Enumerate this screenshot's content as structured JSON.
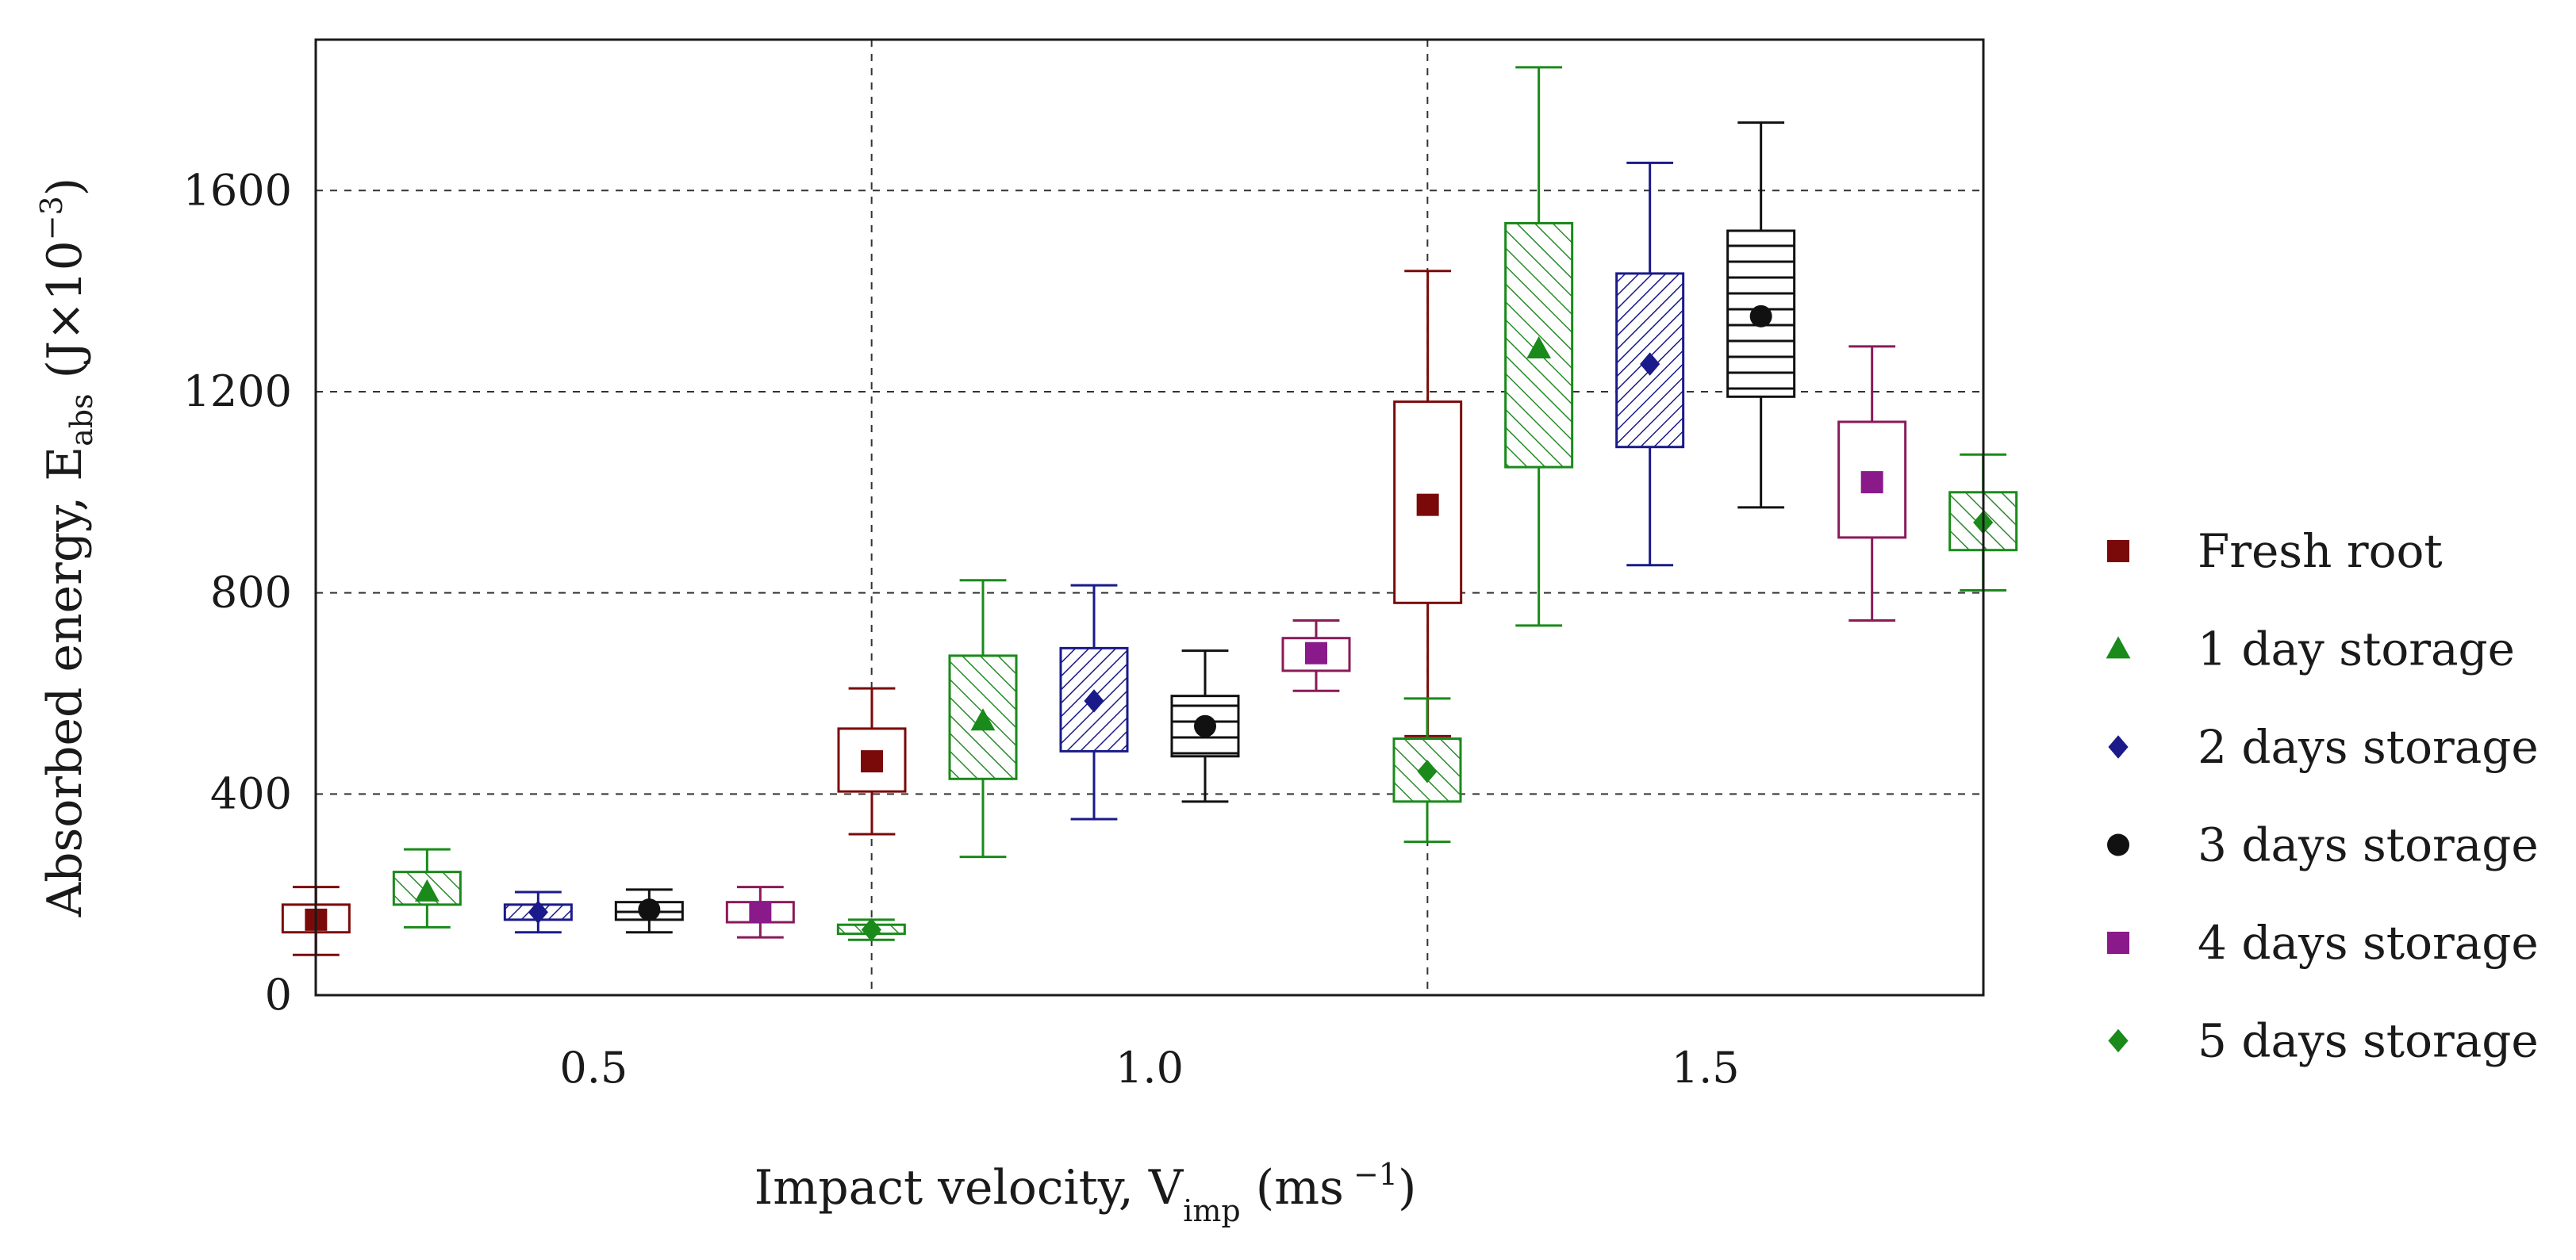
{
  "chart_data": {
    "type": "boxplot",
    "xlabel": {
      "main": "Impact velocity, V",
      "sub": "imp",
      "unit": "(ms",
      "unit_sup": " −1",
      "close": ")"
    },
    "ylabel": {
      "main": "Absorbed energy, E",
      "sub": "abs",
      "unit": "(J×10",
      "unit_sup": "−3",
      "close": ")"
    },
    "ylim": [
      0,
      1900
    ],
    "yticks": [
      0,
      400,
      800,
      1200,
      1600
    ],
    "categories": [
      "0.5",
      "1.0",
      "1.5"
    ],
    "grid": true,
    "legend_position": "right",
    "series": [
      {
        "name": "Fresh root",
        "marker": "square",
        "color": "#7a0a0a",
        "fill": "none",
        "data": [
          {
            "min": 80,
            "q1": 125,
            "median": 150,
            "q3": 180,
            "max": 215
          },
          {
            "min": 320,
            "q1": 405,
            "median": 465,
            "q3": 530,
            "max": 610
          },
          {
            "min": 515,
            "q1": 780,
            "median": 975,
            "q3": 1180,
            "max": 1440
          }
        ]
      },
      {
        "name": "1 day storage",
        "marker": "triangle",
        "color": "#1a8a1a",
        "fill": "hatch-diag",
        "data": [
          {
            "min": 135,
            "q1": 180,
            "median": 205,
            "q3": 245,
            "max": 290
          },
          {
            "min": 275,
            "q1": 430,
            "median": 545,
            "q3": 675,
            "max": 825
          },
          {
            "min": 735,
            "q1": 1050,
            "median": 1285,
            "q3": 1535,
            "max": 1845
          }
        ]
      },
      {
        "name": "2 days storage",
        "marker": "diamond",
        "color": "#1a1a8a",
        "fill": "hatch-diag-back",
        "data": [
          {
            "min": 125,
            "q1": 150,
            "median": 165,
            "q3": 180,
            "max": 205
          },
          {
            "min": 350,
            "q1": 485,
            "median": 585,
            "q3": 690,
            "max": 815
          },
          {
            "min": 855,
            "q1": 1090,
            "median": 1255,
            "q3": 1435,
            "max": 1655
          }
        ]
      },
      {
        "name": "3 days storage",
        "marker": "circle",
        "color": "#111111",
        "fill": "hatch-horizontal",
        "data": [
          {
            "min": 125,
            "q1": 150,
            "median": 170,
            "q3": 185,
            "max": 210
          },
          {
            "min": 385,
            "q1": 475,
            "median": 535,
            "q3": 595,
            "max": 685
          },
          {
            "min": 970,
            "q1": 1190,
            "median": 1350,
            "q3": 1520,
            "max": 1735
          }
        ]
      },
      {
        "name": "4 days storage",
        "marker": "square",
        "color": "#8a1a5a",
        "fill": "none",
        "marker_color": "#8a1a8a",
        "data": [
          {
            "min": 115,
            "q1": 145,
            "median": 165,
            "q3": 185,
            "max": 215
          },
          {
            "min": 605,
            "q1": 645,
            "median": 680,
            "q3": 710,
            "max": 745
          },
          {
            "min": 745,
            "q1": 910,
            "median": 1020,
            "q3": 1140,
            "max": 1290
          }
        ]
      },
      {
        "name": "5 days storage",
        "marker": "diamond",
        "color": "#1a8a1a",
        "fill": "hatch-diag",
        "data": [
          {
            "min": 110,
            "q1": 122,
            "median": 130,
            "q3": 140,
            "max": 150
          },
          {
            "min": 305,
            "q1": 385,
            "median": 445,
            "q3": 510,
            "max": 590
          },
          {
            "min": 805,
            "q1": 885,
            "median": 940,
            "q3": 1000,
            "max": 1075
          }
        ]
      }
    ]
  }
}
